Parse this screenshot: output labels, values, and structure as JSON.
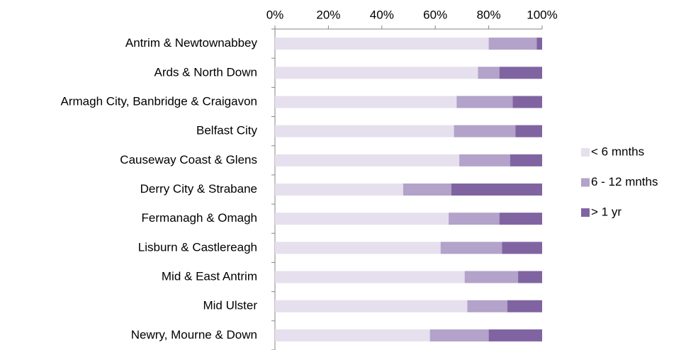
{
  "chart_data": {
    "type": "stacked_bar_horizontal",
    "categories": [
      "Antrim & Newtownabbey",
      "Ards & North Down",
      "Armagh City, Banbridge & Craigavon",
      "Belfast City",
      "Causeway Coast & Glens",
      "Derry City & Strabane",
      "Fermanagh & Omagh",
      "Lisburn & Castlereagh",
      "Mid & East Antrim",
      "Mid Ulster",
      "Newry, Mourne & Down"
    ],
    "series": [
      {
        "name": "< 6 mnths",
        "color": "#e6e0ee",
        "values": [
          80,
          76,
          68,
          67,
          69,
          48,
          65,
          62,
          71,
          72,
          58
        ]
      },
      {
        "name": "6 - 12 mnths",
        "color": "#b3a2c9",
        "values": [
          18,
          8,
          21,
          23,
          19,
          18,
          19,
          23,
          20,
          15,
          22
        ]
      },
      {
        "name": "> 1 yr",
        "color": "#8064a2",
        "values": [
          2,
          16,
          11,
          10,
          12,
          34,
          16,
          15,
          9,
          13,
          20
        ]
      }
    ],
    "xlim": [
      0,
      100
    ],
    "xticks": [
      {
        "value": 0,
        "label": "0%"
      },
      {
        "value": 20,
        "label": "20%"
      },
      {
        "value": 40,
        "label": "40%"
      },
      {
        "value": 60,
        "label": "60%"
      },
      {
        "value": 80,
        "label": "80%"
      },
      {
        "value": 100,
        "label": "100%"
      }
    ],
    "legend": "right"
  }
}
